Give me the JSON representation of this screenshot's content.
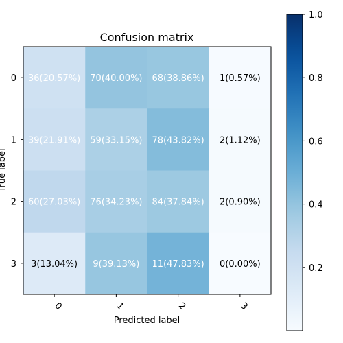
{
  "chart_data": {
    "type": "heatmap",
    "title": "Confusion matrix",
    "xlabel": "Predicted label",
    "ylabel": "True label",
    "x_ticks": [
      "0",
      "1",
      "2",
      "3"
    ],
    "y_ticks": [
      "0",
      "1",
      "2",
      "3"
    ],
    "cells": [
      [
        {
          "text": "36(20.57%)",
          "value": 0.2057
        },
        {
          "text": "70(40.00%)",
          "value": 0.4
        },
        {
          "text": "68(38.86%)",
          "value": 0.3886
        },
        {
          "text": "1(0.57%)",
          "value": 0.0057
        }
      ],
      [
        {
          "text": "39(21.91%)",
          "value": 0.2191
        },
        {
          "text": "59(33.15%)",
          "value": 0.3315
        },
        {
          "text": "78(43.82%)",
          "value": 0.4382
        },
        {
          "text": "2(1.12%)",
          "value": 0.0112
        }
      ],
      [
        {
          "text": "60(27.03%)",
          "value": 0.2703
        },
        {
          "text": "76(34.23%)",
          "value": 0.3423
        },
        {
          "text": "84(37.84%)",
          "value": 0.3784
        },
        {
          "text": "2(0.90%)",
          "value": 0.009
        }
      ],
      [
        {
          "text": "3(13.04%)",
          "value": 0.1304
        },
        {
          "text": "9(39.13%)",
          "value": 0.3913
        },
        {
          "text": "11(47.83%)",
          "value": 0.4783
        },
        {
          "text": "0(0.00%)",
          "value": 0.0
        }
      ]
    ],
    "colormap": "Blues",
    "colormap_stops": [
      "#f7fbff",
      "#deebf7",
      "#c6dbef",
      "#9ecae1",
      "#6baed6",
      "#4292c6",
      "#2171b5",
      "#08519c",
      "#08306b"
    ],
    "color_range": [
      0,
      1
    ],
    "colorbar_ticks": [
      "0.2",
      "0.4",
      "0.6",
      "0.8",
      "1.0"
    ],
    "colorbar_tick_values": [
      0.2,
      0.4,
      0.6,
      0.8,
      1.0
    ],
    "grid": false
  }
}
